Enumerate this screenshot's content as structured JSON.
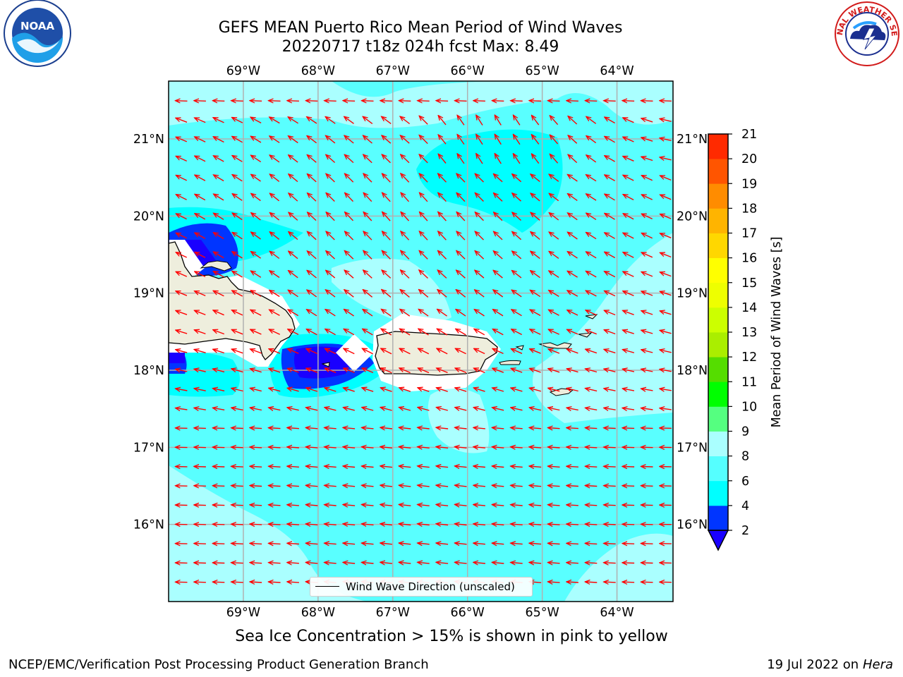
{
  "header": {
    "title_line1": "GEFS MEAN Puerto Rico Mean Period of Wind Waves",
    "title_line2": "20220717 t18z 024h fcst   Max: 8.49"
  },
  "logos": {
    "left_icon": "noaa-logo",
    "left_text": "NOAA",
    "right_icon": "national-weather-service-logo",
    "right_text": "NATIONAL WEATHER SERVICE"
  },
  "map": {
    "lon_labels": [
      "69°W",
      "68°W",
      "67°W",
      "66°W",
      "65°W",
      "64°W"
    ],
    "lat_labels": [
      "21°N",
      "20°N",
      "19°N",
      "18°N",
      "17°N",
      "16°N"
    ],
    "lon_range": [
      -70.0,
      -63.25
    ],
    "lat_range": [
      15.0,
      21.75
    ],
    "grid": true,
    "arrow_color": "#ff0000",
    "land_color": "#eeeedd",
    "background_level_color": "#59ffff"
  },
  "legend": {
    "label": "Wind Wave Direction (unscaled)",
    "placement": "bottom-center"
  },
  "colorbar": {
    "label": "Mean Period of Wind Waves [s]",
    "ticks": [
      "2",
      "4",
      "6",
      "8",
      "9",
      "10",
      "11",
      "12",
      "13",
      "14",
      "15",
      "16",
      "17",
      "18",
      "19",
      "20",
      "21"
    ],
    "colors": [
      "#0035ff",
      "#00ffff",
      "#55ffff",
      "#aaffff",
      "#55ff80",
      "#00ff00",
      "#55dd00",
      "#aaee00",
      "#ccff00",
      "#eeff00",
      "#ffff00",
      "#ffd700",
      "#ffb400",
      "#ff8c00",
      "#ff5500",
      "#ff2a00",
      "#ff0000"
    ],
    "under_color": "#1a00ff"
  },
  "footer": {
    "note": "Sea Ice Concentration > 15% is shown in pink to yellow",
    "left": "NCEP/EMC/Verification Post Processing Product Generation Branch",
    "right_prefix": "19 Jul 2022 on",
    "right_italic": "Hera"
  }
}
